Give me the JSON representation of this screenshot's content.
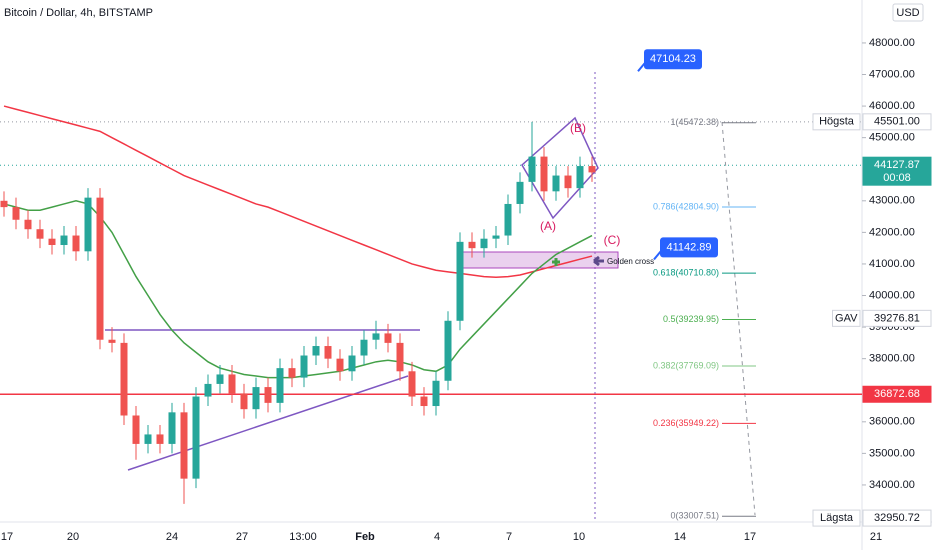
{
  "header": {
    "title": "Bitcoin / Dollar, 4h, BITSTAMP",
    "currency": "USD"
  },
  "chart_data": {
    "type": "candlestick",
    "up_color": "#26a69a",
    "down_color": "#ef5350",
    "x_labels": [
      "17",
      "20",
      "24",
      "27",
      "13:00",
      "Feb",
      "4",
      "7",
      "10",
      "14",
      "17",
      "21"
    ],
    "ohlc": [
      [
        43000,
        43300,
        42500,
        42800
      ],
      [
        42800,
        43100,
        42100,
        42400
      ],
      [
        42400,
        42700,
        41800,
        42100
      ],
      [
        42100,
        42400,
        41500,
        41800
      ],
      [
        41800,
        42100,
        41300,
        41600
      ],
      [
        41600,
        42200,
        41300,
        41900
      ],
      [
        41900,
        42200,
        41100,
        41400
      ],
      [
        41400,
        43400,
        41100,
        43100
      ],
      [
        43100,
        43400,
        38300,
        38600
      ],
      [
        38600,
        39000,
        38200,
        38500
      ],
      [
        38500,
        38800,
        35900,
        36200
      ],
      [
        36200,
        36500,
        34800,
        35300
      ],
      [
        35300,
        35900,
        35000,
        35600
      ],
      [
        35600,
        35900,
        35000,
        35300
      ],
      [
        35300,
        36600,
        35000,
        36300
      ],
      [
        36300,
        36600,
        33400,
        34200
      ],
      [
        34200,
        37100,
        33900,
        36800
      ],
      [
        36800,
        37500,
        36500,
        37200
      ],
      [
        37200,
        37800,
        36900,
        37500
      ],
      [
        37500,
        37800,
        36600,
        36900
      ],
      [
        36900,
        37200,
        36100,
        36400
      ],
      [
        36400,
        37400,
        36100,
        37100
      ],
      [
        37100,
        37400,
        36300,
        36600
      ],
      [
        36600,
        38000,
        36300,
        37700
      ],
      [
        37700,
        38000,
        37100,
        37400
      ],
      [
        37400,
        38400,
        37100,
        38100
      ],
      [
        38100,
        38700,
        37800,
        38400
      ],
      [
        38400,
        38700,
        37700,
        38000
      ],
      [
        38000,
        38300,
        37300,
        37600
      ],
      [
        37600,
        38400,
        37300,
        38100
      ],
      [
        38100,
        38900,
        37800,
        38600
      ],
      [
        38600,
        39200,
        38300,
        38800
      ],
      [
        38800,
        39100,
        38200,
        38500
      ],
      [
        38500,
        38800,
        37300,
        37600
      ],
      [
        37600,
        37900,
        36500,
        36800
      ],
      [
        36800,
        37100,
        36200,
        36500
      ],
      [
        36500,
        37600,
        36200,
        37300
      ],
      [
        37300,
        39500,
        37000,
        39200
      ],
      [
        39200,
        42000,
        38900,
        41700
      ],
      [
        41700,
        42000,
        41200,
        41500
      ],
      [
        41500,
        42100,
        41200,
        41800
      ],
      [
        41800,
        42200,
        41500,
        41900
      ],
      [
        41900,
        43200,
        41600,
        42900
      ],
      [
        42900,
        43900,
        42600,
        43600
      ],
      [
        43600,
        45500,
        43300,
        44400
      ],
      [
        44400,
        44700,
        43000,
        43300
      ],
      [
        43300,
        44100,
        43000,
        43800
      ],
      [
        43800,
        44100,
        43100,
        43400
      ],
      [
        43400,
        44400,
        43100,
        44100
      ],
      [
        44100,
        44400,
        43600,
        43900
      ]
    ],
    "moving_averages": [
      {
        "color": "#f23645",
        "values": [
          46000,
          45900,
          45800,
          45700,
          45600,
          45500,
          45400,
          45300,
          45200,
          45000,
          44800,
          44600,
          44400,
          44200,
          44000,
          43800,
          43650,
          43500,
          43350,
          43200,
          43050,
          42900,
          42800,
          42650,
          42500,
          42350,
          42200,
          42050,
          41900,
          41750,
          41600,
          41450,
          41300,
          41150,
          41000,
          40900,
          40800,
          40750,
          40700,
          40650,
          40600,
          40580,
          40600,
          40650,
          40750,
          40850,
          40950,
          41050,
          41150,
          41250
        ]
      },
      {
        "color": "#43a047",
        "values": [
          42900,
          42800,
          42700,
          42700,
          42800,
          42900,
          43000,
          42900,
          42500,
          42000,
          41300,
          40600,
          40000,
          39400,
          38900,
          38500,
          38200,
          37900,
          37700,
          37600,
          37500,
          37450,
          37400,
          37400,
          37400,
          37450,
          37500,
          37550,
          37600,
          37700,
          37800,
          37900,
          37950,
          37900,
          37800,
          37650,
          37600,
          37800,
          38300,
          38700,
          39100,
          39500,
          39900,
          40300,
          40700,
          41000,
          41300,
          41500,
          41700,
          41900
        ]
      }
    ],
    "ylim": [
      32890,
      49360
    ],
    "yticks": [
      {
        "value": 34000,
        "label": "34000.00"
      },
      {
        "value": 35000,
        "label": "35000.00"
      },
      {
        "value": 36000,
        "label": "36000.00"
      },
      {
        "value": 38000,
        "label": "38000.00"
      },
      {
        "value": 39000,
        "label": "39000.00"
      },
      {
        "value": 40000,
        "label": "40000.00"
      },
      {
        "value": 41000,
        "label": "41000.00"
      },
      {
        "value": 42000,
        "label": "42000.00"
      },
      {
        "value": 43000,
        "label": "43000.00"
      },
      {
        "value": 45000,
        "label": "45000.00"
      },
      {
        "value": 46000,
        "label": "46000.00"
      },
      {
        "value": 47000,
        "label": "47000.00"
      },
      {
        "value": 48000,
        "label": "48000.00"
      }
    ],
    "grid": false,
    "callouts": [
      {
        "value": 47104.23,
        "color": "#2962ff"
      },
      {
        "value": 41142.89,
        "color": "#2962ff"
      }
    ],
    "axis_tags": [
      {
        "value": 45501,
        "label": "45501.00",
        "name": "Högsta",
        "color": "#ffffff",
        "text_color": "#131722"
      },
      {
        "value": 44127.87,
        "countdown": "00:08",
        "color": "#26a69a",
        "text_color": "#ffffff"
      },
      {
        "value": 39276.81,
        "name": "GAV",
        "color": "#ffffff",
        "text_color": "#131722"
      },
      {
        "value": 36872.68,
        "color": "#f23645",
        "text_color": "#ffffff"
      },
      {
        "value": 32950.72,
        "name": "Lägsta",
        "color": "#ffffff",
        "text_color": "#131722"
      }
    ],
    "fib": [
      {
        "value": 45472.38,
        "label": "1(45472.38)",
        "color": "#787b86"
      },
      {
        "value": 42804.9,
        "label": "0.786(42804.90)",
        "color": "#64b5f6"
      },
      {
        "value": 40710.8,
        "label": "0.618(40710.80)",
        "color": "#089981"
      },
      {
        "value": 39239.95,
        "label": "0.5(39239.95)",
        "color": "#4caf50"
      },
      {
        "value": 37769.09,
        "label": "0.382(37769.09)",
        "color": "#81c784"
      },
      {
        "value": 35949.22,
        "label": "0.236(35949.22)",
        "color": "#f23645"
      },
      {
        "value": 33007.51,
        "label": "0(33007.51)",
        "color": "#787b86"
      }
    ],
    "annotations": [
      "(A)",
      "(B)",
      "(C)",
      "Golden cross"
    ]
  }
}
